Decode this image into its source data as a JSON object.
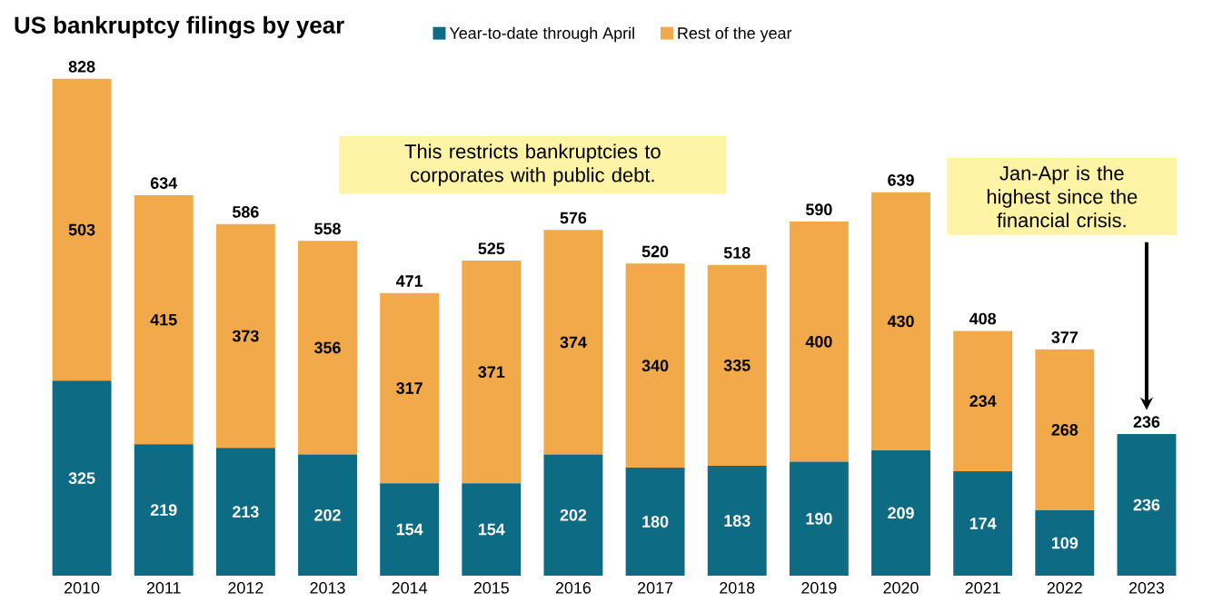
{
  "chart_data": {
    "type": "bar",
    "title": "US bankruptcy filings by year",
    "stacked": true,
    "data_labels": true,
    "legend": "top",
    "categories": [
      "2010",
      "2011",
      "2012",
      "2013",
      "2014",
      "2015",
      "2016",
      "2017",
      "2018",
      "2019",
      "2020",
      "2021",
      "2022",
      "2023"
    ],
    "series": [
      {
        "name": "Year-to-date through April",
        "color": "#0e6b84",
        "values": [
          325,
          219,
          213,
          202,
          154,
          154,
          202,
          180,
          183,
          190,
          209,
          174,
          109,
          236
        ]
      },
      {
        "name": "Rest of the year",
        "color": "#f2a94a",
        "values": [
          503,
          415,
          373,
          356,
          317,
          371,
          374,
          340,
          335,
          400,
          430,
          234,
          268,
          null
        ]
      }
    ],
    "totals": [
      "828",
      "634",
      "586",
      "558",
      "471",
      "525",
      "576",
      "520",
      "518",
      "590",
      "639",
      "408",
      "377",
      "236"
    ],
    "annotations": [
      "This restricts bankruptcies to corporates with public debt.",
      "Jan-Apr is the highest since the financial crisis."
    ]
  }
}
